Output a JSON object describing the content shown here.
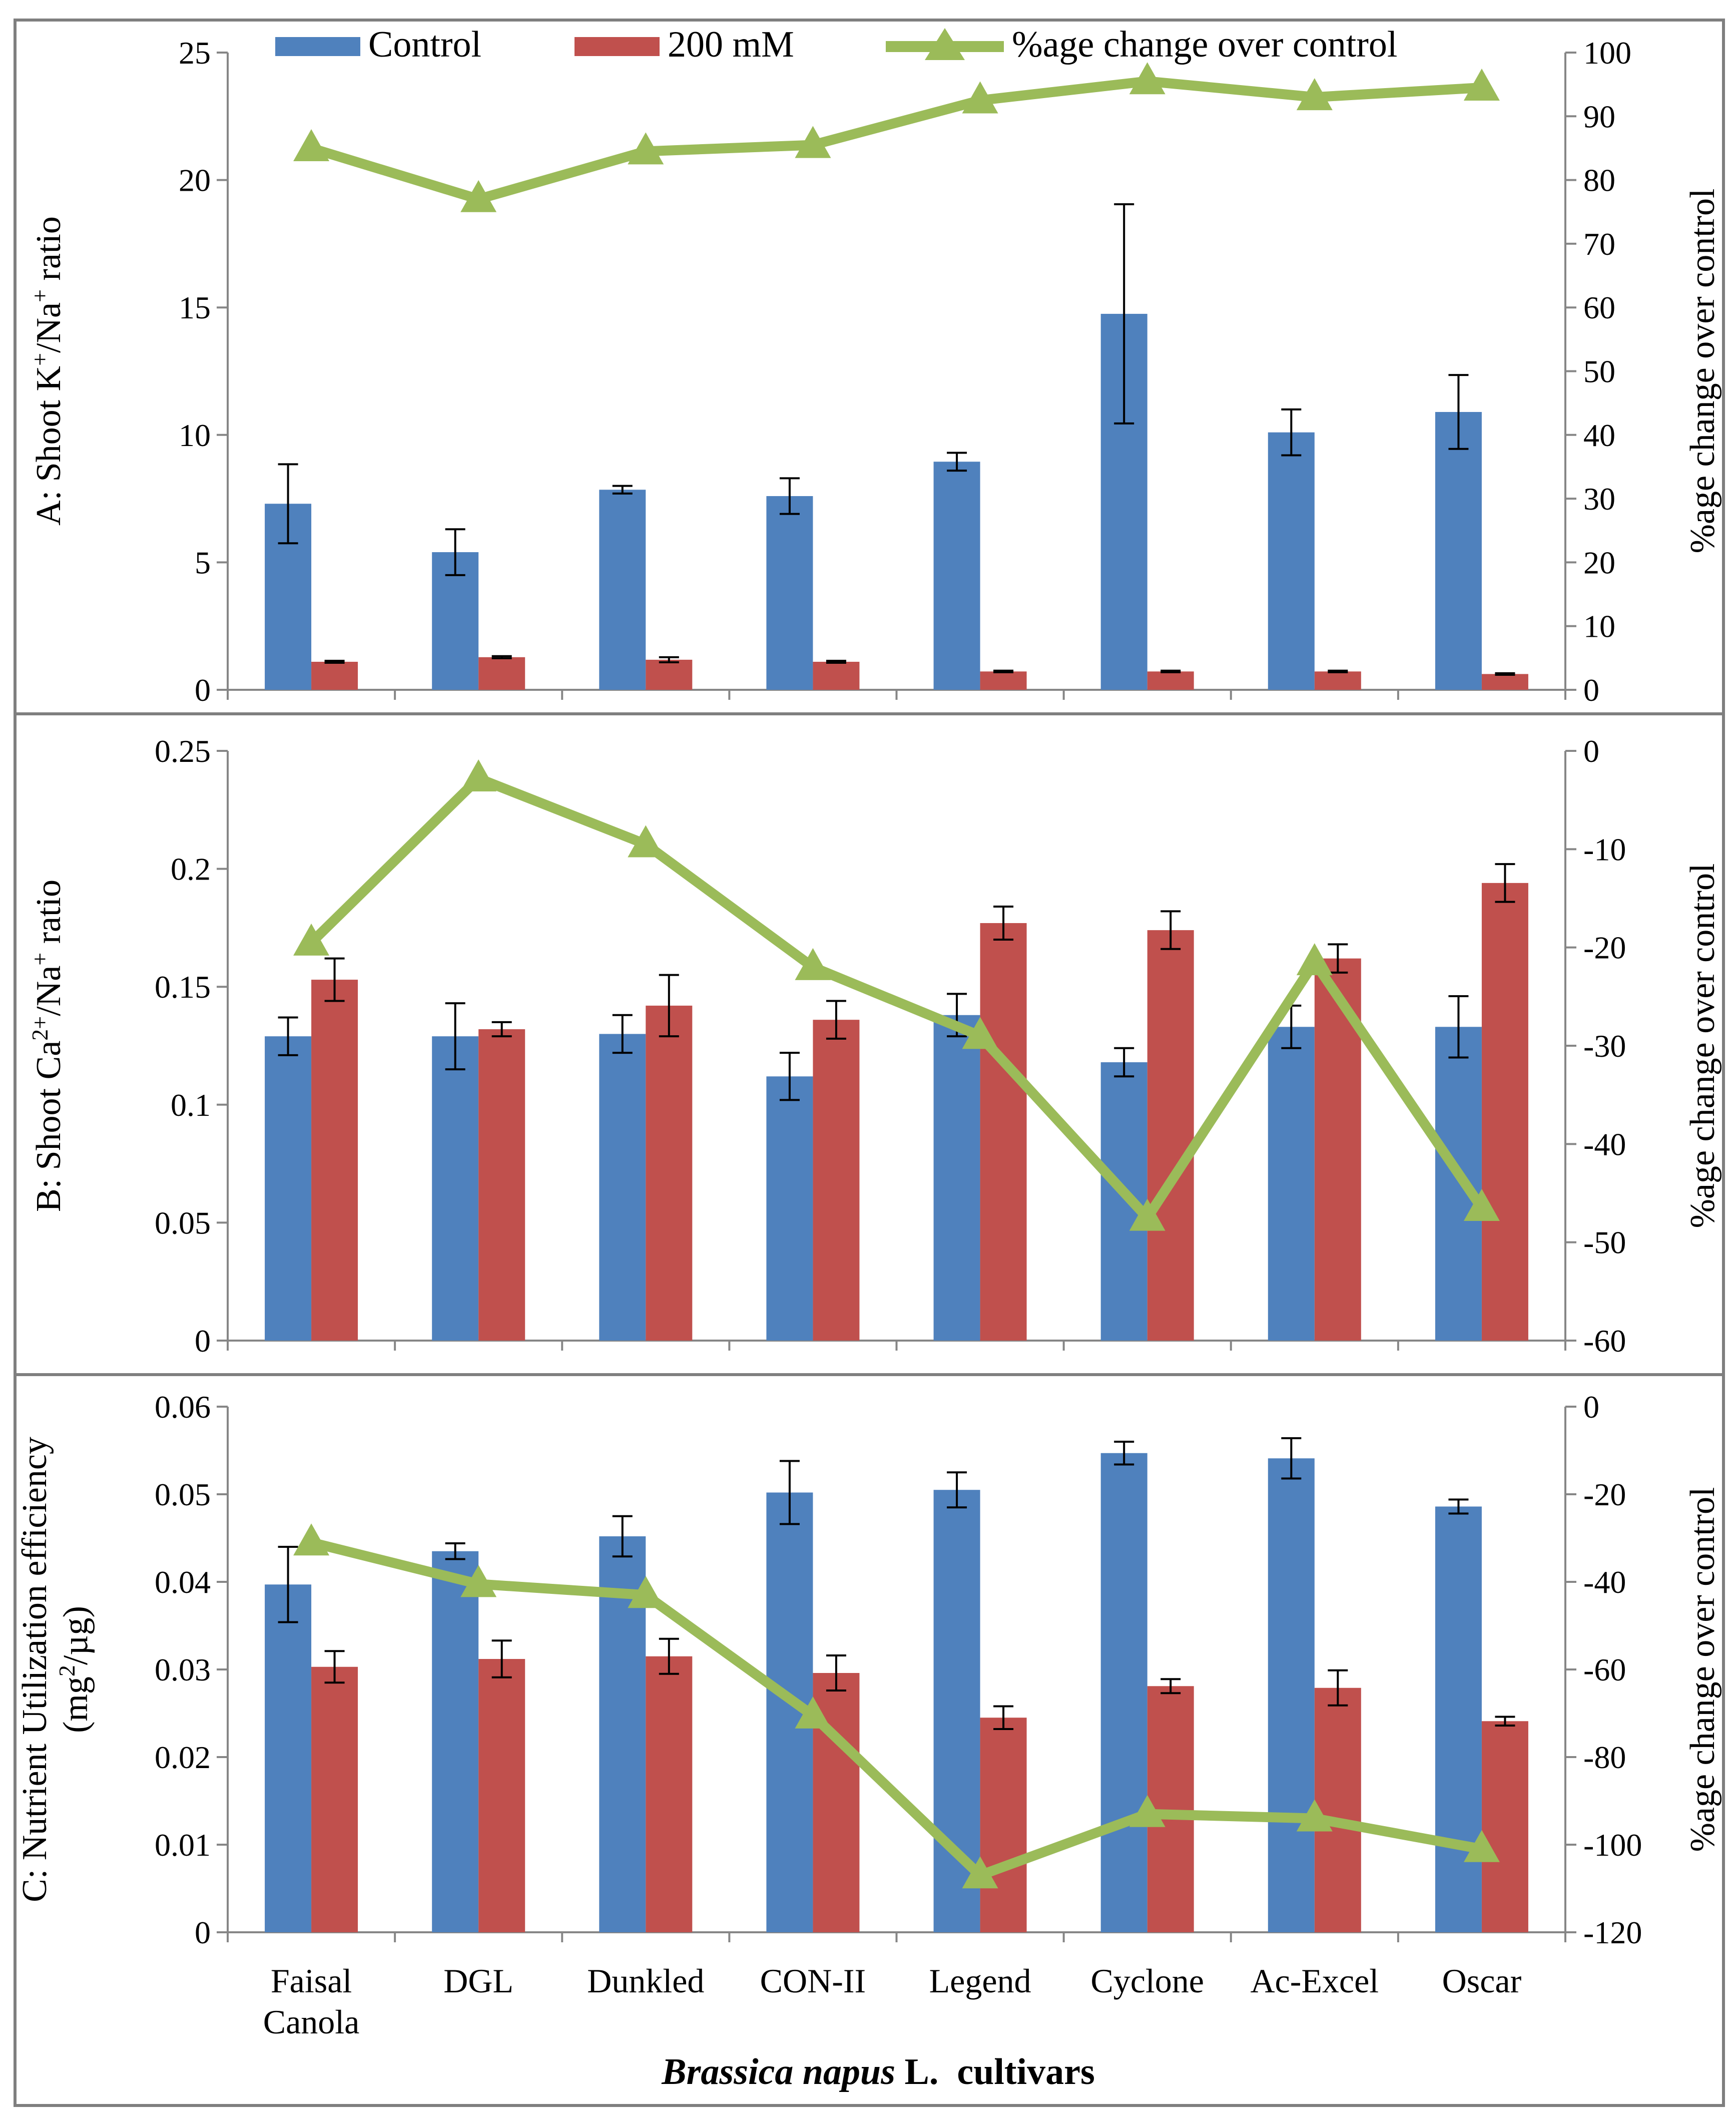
{
  "legend": {
    "control": "Control",
    "treatment": "200 mM",
    "change": "%age change over control"
  },
  "colors": {
    "control": "#4F81BD",
    "treatment": "#C0504D",
    "change": "#9BBB59",
    "frame": "#7F7F7F",
    "axis": "#868686"
  },
  "x_title": {
    "italic": "Brassica napus",
    "rest": " L.  cultivars"
  },
  "chart_data": [
    {
      "type": "bar",
      "panel": "A",
      "ylabel": {
        "base": "A: Shoot K",
        "sup1": "+",
        "mid": "/Na",
        "sup2": "+",
        "tail": " ratio"
      },
      "ylabel_right": "%age change over control",
      "categories": [
        "Faisal Canola",
        "DGL",
        "Dunkled",
        "CON-II",
        "Legend",
        "Cyclone",
        "Ac-Excel",
        "Oscar"
      ],
      "ylim": [
        0,
        25
      ],
      "yticks": [
        0,
        5,
        10,
        15,
        20,
        25
      ],
      "ytick_labels": [
        "0",
        "5",
        "10",
        "15",
        "20",
        "25"
      ],
      "y2lim": [
        0,
        100
      ],
      "y2ticks": [
        0,
        10,
        20,
        30,
        40,
        50,
        60,
        70,
        80,
        90,
        100
      ],
      "y2tick_labels": [
        "0",
        "10",
        "20",
        "30",
        "40",
        "50",
        "60",
        "70",
        "80",
        "90",
        "100"
      ],
      "series": [
        {
          "name": "Control",
          "values": [
            7.3,
            5.4,
            7.85,
            7.6,
            8.95,
            14.75,
            10.1,
            10.9
          ],
          "errors": [
            1.55,
            0.9,
            0.15,
            0.7,
            0.35,
            4.3,
            0.9,
            1.45
          ]
        },
        {
          "name": "200 mM",
          "values": [
            1.1,
            1.28,
            1.18,
            1.1,
            0.72,
            0.72,
            0.72,
            0.62
          ],
          "errors": [
            0.04,
            0.04,
            0.1,
            0.04,
            0.03,
            0.03,
            0.03,
            0.03
          ]
        },
        {
          "name": "%age change over control",
          "axis": "right",
          "values": [
            85,
            77,
            84.5,
            85.5,
            92.5,
            95.5,
            93,
            94.5
          ]
        }
      ]
    },
    {
      "type": "bar",
      "panel": "B",
      "ylabel": {
        "base": "B: Shoot Ca",
        "sup1": "2+",
        "mid": "/Na",
        "sup2": "+",
        "tail": " ratio"
      },
      "ylabel_right": "%age change over control",
      "categories": [
        "Faisal Canola",
        "DGL",
        "Dunkled",
        "CON-II",
        "Legend",
        "Cyclone",
        "Ac-Excel",
        "Oscar"
      ],
      "ylim": [
        0,
        0.25
      ],
      "yticks": [
        0,
        0.05,
        0.1,
        0.15,
        0.2,
        0.25
      ],
      "ytick_labels": [
        "0",
        "0.05",
        "0.1",
        "0.15",
        "0.2",
        "0.25"
      ],
      "y2lim": [
        -60,
        0
      ],
      "y2ticks": [
        -60,
        -50,
        -40,
        -30,
        -20,
        -10,
        0
      ],
      "y2tick_labels": [
        "-60",
        "-50",
        "-40",
        "-30",
        "-20",
        "-10",
        "0"
      ],
      "series": [
        {
          "name": "Control",
          "values": [
            0.129,
            0.129,
            0.13,
            0.112,
            0.138,
            0.118,
            0.133,
            0.133
          ],
          "errors": [
            0.008,
            0.014,
            0.008,
            0.01,
            0.009,
            0.006,
            0.009,
            0.013
          ]
        },
        {
          "name": "200 mM",
          "values": [
            0.153,
            0.132,
            0.142,
            0.136,
            0.177,
            0.174,
            0.162,
            0.194
          ],
          "errors": [
            0.009,
            0.003,
            0.013,
            0.008,
            0.007,
            0.008,
            0.006,
            0.008
          ]
        },
        {
          "name": "%age change over control",
          "axis": "right",
          "values": [
            -19.5,
            -2.8,
            -9.5,
            -22,
            -29,
            -47.5,
            -21.5,
            -46.5
          ]
        }
      ]
    },
    {
      "type": "bar",
      "panel": "C",
      "ylabel": {
        "line1": "C: Nutrient Utilization efficiency",
        "line2_base": "(mg",
        "line2_sup": "2",
        "line2_tail": "/µg)"
      },
      "ylabel_right": "%age change over control",
      "categories": [
        "Faisal Canola",
        "DGL",
        "Dunkled",
        "CON-II",
        "Legend",
        "Cyclone",
        "Ac-Excel",
        "Oscar"
      ],
      "xtick_lines": [
        [
          "Faisal",
          "Canola"
        ],
        [
          "DGL"
        ],
        [
          "Dunkled"
        ],
        [
          "CON-II"
        ],
        [
          "Legend"
        ],
        [
          "Cyclone"
        ],
        [
          "Ac-Excel"
        ],
        [
          "Oscar"
        ]
      ],
      "ylim": [
        0,
        0.06
      ],
      "yticks": [
        0,
        0.01,
        0.02,
        0.03,
        0.04,
        0.05,
        0.06
      ],
      "ytick_labels": [
        "0",
        "0.01",
        "0.02",
        "0.03",
        "0.04",
        "0.05",
        "0.06"
      ],
      "y2lim": [
        -120,
        0
      ],
      "y2ticks": [
        -120,
        -100,
        -80,
        -60,
        -40,
        -20,
        0
      ],
      "y2tick_labels": [
        "-120",
        "-100",
        "-80",
        "-60",
        "-40",
        "-20",
        "0"
      ],
      "series": [
        {
          "name": "Control",
          "values": [
            0.0397,
            0.0435,
            0.0452,
            0.0502,
            0.0505,
            0.0547,
            0.0541,
            0.0486
          ],
          "errors": [
            0.0043,
            0.0009,
            0.0023,
            0.0036,
            0.002,
            0.0013,
            0.0023,
            0.0008
          ]
        },
        {
          "name": "200 mM",
          "values": [
            0.0303,
            0.0312,
            0.0315,
            0.0296,
            0.0245,
            0.0281,
            0.0279,
            0.0241
          ],
          "errors": [
            0.0018,
            0.0021,
            0.002,
            0.002,
            0.0013,
            0.0008,
            0.002,
            0.0005
          ]
        },
        {
          "name": "%age change over control",
          "axis": "right",
          "values": [
            -31,
            -40.5,
            -43,
            -70.5,
            -107,
            -93,
            -94,
            -101
          ]
        }
      ]
    }
  ]
}
